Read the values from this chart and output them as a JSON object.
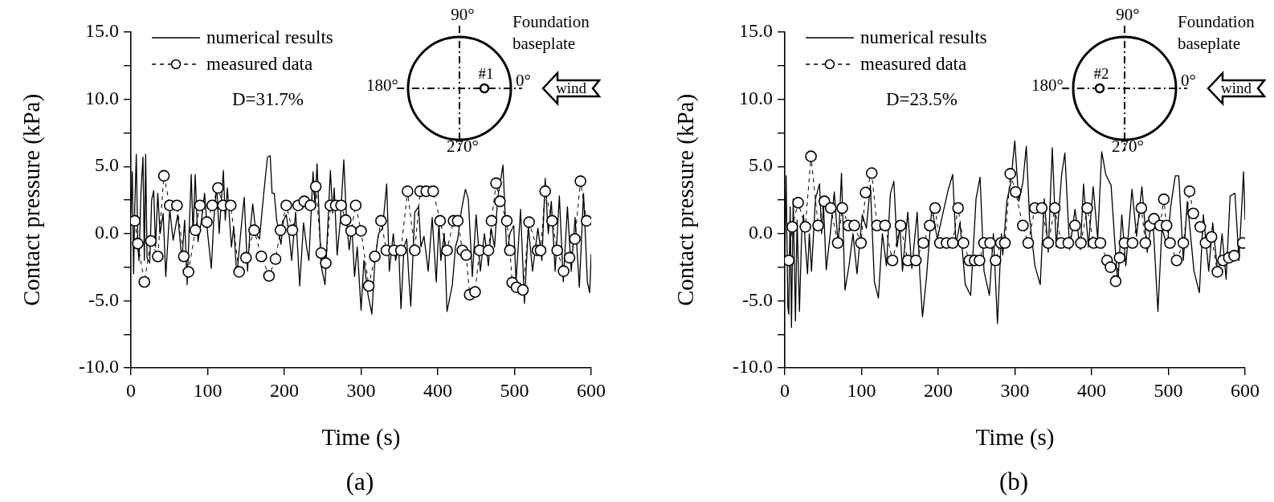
{
  "chart_data": [
    {
      "type": "line",
      "xlabel": "Time (s)",
      "ylabel": "Contact pressure (kPa)",
      "xlim": [
        0,
        600
      ],
      "xticks": [
        0,
        100,
        200,
        300,
        400,
        500,
        600
      ],
      "ylim": [
        -10,
        15
      ],
      "yticks": [
        {
          "value": -10,
          "label": "-10.0"
        },
        {
          "value": -7.5,
          "label": null
        },
        {
          "value": -5,
          "label": "-5.0"
        },
        {
          "value": -2.5,
          "label": null
        },
        {
          "value": 0,
          "label": "0.0"
        },
        {
          "value": 2.5,
          "label": null
        },
        {
          "value": 5,
          "label": "5.0"
        },
        {
          "value": 7.5,
          "label": null
        },
        {
          "value": 10,
          "label": "10.0"
        },
        {
          "value": 12.5,
          "label": null
        },
        {
          "value": 15,
          "label": "15.0"
        }
      ],
      "legend": "top left",
      "grid": false,
      "annotations": [
        "D=31.7%",
        "(a)",
        "90°",
        "180°",
        "0°",
        "270°",
        "#1",
        "Foundation baseplate",
        "wind"
      ],
      "series": [
        {
          "name": "numerical results",
          "color": "#000000",
          "marker": "none",
          "line_style": "solid",
          "x": [
            0,
            1.8,
            3.5,
            5,
            7,
            9,
            10.5,
            13,
            15.7,
            17.5,
            19.2,
            21,
            24.5,
            27,
            29.7,
            32,
            35,
            38,
            42,
            45.4,
            50.6,
            55,
            61,
            66.4,
            70,
            73.3,
            78.6,
            81,
            83.8,
            87.3,
            92,
            96,
            100,
            104.8,
            108,
            111.7,
            115,
            120.5,
            123,
            125.7,
            131,
            134,
            138,
            143,
            147.7,
            152,
            155,
            158.8,
            163,
            167.6,
            172.8,
            178,
            181.5,
            184,
            186.8,
            190,
            195.5,
            199,
            202.5,
            206,
            209.5,
            214.7,
            220,
            225,
            229,
            232,
            237.4,
            240,
            242.6,
            247.9,
            253,
            257,
            260,
            263,
            265,
            268.8,
            273,
            277.5,
            281,
            284.5,
            288,
            291.5,
            295,
            300,
            303.7,
            308.9,
            314.1,
            318,
            322.8,
            328,
            333.4,
            336.8,
            342,
            345,
            349,
            352,
            356,
            359.5,
            362,
            364.8,
            370,
            375,
            378,
            382,
            387.5,
            392.7,
            398,
            401.5,
            404,
            408.5,
            412,
            419,
            423,
            426,
            431,
            436,
            439.8,
            445,
            450,
            455.5,
            460.8,
            466,
            469.5,
            474,
            478,
            482,
            485,
            490,
            494,
            499,
            502,
            507.9,
            513,
            518,
            523.5,
            530.5,
            535.7,
            540,
            544,
            548,
            553,
            558.5,
            563.6,
            569,
            574,
            579,
            584.5,
            590,
            595,
            598,
            600
          ],
          "values": [
            1.5,
            4.6,
            -3.0,
            2,
            5.9,
            -1,
            -2.0,
            3,
            5.7,
            -2,
            5.9,
            -1.8,
            -2.2,
            2.5,
            3.2,
            -1,
            3.0,
            0,
            1.5,
            -3.2,
            1.8,
            -0.5,
            1.4,
            -2.0,
            1,
            -3.8,
            4.4,
            0,
            4.4,
            -0.6,
            1,
            3.0,
            0,
            -2.6,
            1,
            3.6,
            0,
            4.7,
            1,
            3.4,
            -1.0,
            0.5,
            -3.2,
            0,
            2.7,
            -2.8,
            0,
            2.2,
            0,
            -0.4,
            2.8,
            5.7,
            5.8,
            3,
            3.0,
            1,
            -0.8,
            1,
            1.4,
            0,
            -2.0,
            1.6,
            -3.9,
            0.8,
            -1,
            -2.0,
            4.6,
            2,
            5.2,
            -2.4,
            -3.8,
            1,
            4.7,
            1.5,
            3.4,
            -1.6,
            1,
            5.5,
            1,
            -1.2,
            0.5,
            -3.2,
            -1,
            -5.7,
            -2,
            -4.5,
            -6.0,
            -2,
            0,
            0.4,
            3.7,
            -2.8,
            0,
            -2,
            -1.0,
            -5.6,
            -1,
            -0.4,
            -3,
            -5.4,
            1.6,
            2.0,
            -1,
            -0.2,
            -2.8,
            1.2,
            -3.6,
            0.8,
            -2,
            0,
            -5.8,
            -3.8,
            -1,
            -0.4,
            1.8,
            3.3,
            2.6,
            -3.2,
            1.4,
            -2.8,
            0,
            -2.4,
            0.4,
            -1,
            2.6,
            4.0,
            5.1,
            -1.6,
            0,
            0.6,
            -3.6,
            1.8,
            -5.2,
            0.6,
            -2.8,
            0.4,
            -2.0,
            4.1,
            0,
            2.4,
            -2.8,
            2.8,
            -3.6,
            2.0,
            -2.8,
            1.2,
            -4.0,
            3.0,
            -3.6,
            -4.4,
            -1.5
          ]
        },
        {
          "name": "measured data",
          "color": "#000000",
          "marker": "circle",
          "line_style": "dashed",
          "x": [
            5,
            9,
            17.5,
            26,
            35,
            43,
            50.6,
            60,
            69,
            75,
            84,
            90,
            99,
            106,
            113.5,
            120,
            130,
            141,
            150,
            160.6,
            170,
            180,
            188.5,
            195,
            202.5,
            210.5,
            218,
            226,
            234,
            241,
            248,
            254,
            260,
            267,
            274,
            280,
            287,
            293,
            300,
            310,
            318,
            326,
            333,
            343,
            352,
            360.6,
            370,
            377,
            385,
            394,
            403,
            412,
            420.6,
            426,
            432,
            437,
            441.6,
            448.6,
            454.5,
            466,
            470,
            476,
            481,
            490,
            494,
            497,
            502.6,
            511,
            519,
            530,
            534,
            540,
            549,
            555.7,
            564,
            571.7,
            578.7,
            586,
            594
          ],
          "values": [
            0.95,
            -0.75,
            -3.6,
            -0.55,
            -1.7,
            4.3,
            2.1,
            2.1,
            -1.7,
            -2.85,
            0.25,
            2.1,
            0.85,
            2.1,
            3.4,
            2.1,
            2.1,
            -2.85,
            -1.8,
            0.25,
            -1.7,
            -3.15,
            -1.9,
            0.25,
            2.1,
            0.25,
            2.1,
            2.4,
            2.1,
            3.5,
            -1.45,
            -2.2,
            2.1,
            2.1,
            2.1,
            1.0,
            0.2,
            2.1,
            0.2,
            -3.9,
            -1.7,
            0.95,
            -1.25,
            -1.25,
            -1.25,
            3.15,
            -1.25,
            3.15,
            3.15,
            3.15,
            0.95,
            -1.25,
            0.95,
            0.95,
            -1.25,
            -1.6,
            -4.55,
            -4.35,
            -1.25,
            -1.25,
            0.95,
            3.75,
            2.4,
            0.95,
            -1.25,
            -3.65,
            -4.0,
            -4.2,
            0.85,
            -1.25,
            -1.25,
            3.15,
            0.95,
            -1.25,
            -2.8,
            -1.8,
            -0.4,
            3.9,
            0.95
          ]
        }
      ]
    },
    {
      "type": "line",
      "xlabel": "Time (s)",
      "ylabel": "Contact pressure (kPa)",
      "xlim": [
        0,
        600
      ],
      "xticks": [
        0,
        100,
        200,
        300,
        400,
        500,
        600
      ],
      "ylim": [
        -10,
        15
      ],
      "yticks": [
        {
          "value": -10,
          "label": "-10.0"
        },
        {
          "value": -7.5,
          "label": null
        },
        {
          "value": -5,
          "label": "-5.0"
        },
        {
          "value": -2.5,
          "label": null
        },
        {
          "value": 0,
          "label": "0.0"
        },
        {
          "value": 2.5,
          "label": null
        },
        {
          "value": 5,
          "label": "5.0"
        },
        {
          "value": 7.5,
          "label": null
        },
        {
          "value": 10,
          "label": "10.0"
        },
        {
          "value": 12.5,
          "label": null
        },
        {
          "value": 15,
          "label": "15.0"
        }
      ],
      "legend": "top left",
      "grid": false,
      "annotations": [
        "D=23.5%",
        "(b)",
        "90°",
        "180°",
        "0°",
        "270°",
        "#2",
        "Foundation baseplate",
        "wind"
      ],
      "series": [
        {
          "name": "numerical results",
          "color": "#000000",
          "marker": "none",
          "line_style": "solid",
          "x": [
            0,
            1.7,
            4,
            5.2,
            7,
            8.7,
            11,
            13.9,
            16,
            19.1,
            22,
            24.4,
            27,
            29.6,
            32,
            34.8,
            40,
            45.3,
            48,
            50.5,
            54,
            59.3,
            64.5,
            69.7,
            73.9,
            78.4,
            83.7,
            88.9,
            94.1,
            101,
            106.3,
            111.5,
            116.8,
            122,
            127.2,
            132.5,
            137.7,
            142.2,
            146.4,
            150,
            153.4,
            160.3,
            165.6,
            172.6,
            176,
            179.5,
            184.8,
            191.7,
            198.7,
            205.7,
            212.7,
            218.9,
            223.1,
            228.3,
            235.3,
            242.3,
            249.3,
            254.5,
            259.7,
            266.7,
            271.9,
            277.2,
            282.4,
            284.2,
            289.4,
            294.6,
            299.8,
            305,
            310.3,
            314.8,
            319,
            326,
            333,
            338.2,
            343.4,
            348.7,
            353.9,
            360.9,
            365.1,
            371.3,
            378.3,
            385.3,
            389.4,
            395.7,
            402,
            407.9,
            413.1,
            418.4,
            425.3,
            431.3,
            434.1,
            439.3,
            444.5,
            452.6,
            458.5,
            465.5,
            472.4,
            479.4,
            486.4,
            491.6,
            498.6,
            503,
            509,
            513.6,
            519.5,
            524.7,
            533.4,
            540.4,
            545.6,
            552.6,
            557.8,
            564.8,
            570,
            575.3,
            580.5,
            586.8,
            592,
            598,
            600
          ],
          "values": [
            -2,
            4.3,
            -5.5,
            -6,
            2,
            -7.0,
            2.6,
            -6.5,
            1,
            -5.8,
            0,
            1.4,
            -1,
            -3.0,
            0,
            -2.8,
            2.6,
            3.7,
            0,
            2.0,
            -2.7,
            0,
            3.1,
            -1.0,
            4.5,
            -4.2,
            -2.4,
            0,
            -3.0,
            1.4,
            0.4,
            3.6,
            -3.6,
            -4.8,
            0,
            -2.4,
            3.0,
            3.9,
            -1.0,
            0.5,
            -2.8,
            1.6,
            -2.6,
            1.6,
            -3,
            -6.2,
            -3.2,
            2.0,
            -0.4,
            1.4,
            3.2,
            4.4,
            -0.8,
            0.8,
            -3.8,
            -4.6,
            2.6,
            4.2,
            -2.8,
            -4.6,
            0,
            -6.7,
            0,
            -1.6,
            2.4,
            3.8,
            6.9,
            2.4,
            3.8,
            6.5,
            1.2,
            -2.4,
            -3.8,
            2.6,
            -1.4,
            6.4,
            -1.0,
            4.4,
            6.0,
            -1.2,
            1.8,
            -1.2,
            3.7,
            -1.0,
            3.5,
            -0.4,
            6.1,
            4.4,
            3.6,
            -1.6,
            -3.8,
            1.4,
            -2.4,
            3.3,
            -0.2,
            3.5,
            -1.4,
            1.5,
            -5.8,
            0.4,
            -1.0,
            2,
            4.3,
            4.3,
            -2.0,
            2.4,
            -2.8,
            -4.4,
            1.4,
            -2.8,
            0.8,
            -3.2,
            0,
            -3.4,
            2.8,
            3.0,
            -2,
            4.6,
            1
          ]
        },
        {
          "name": "measured data",
          "color": "#000000",
          "marker": "circle",
          "line_style": "dashed",
          "x": [
            5.2,
            9.7,
            17.4,
            26.8,
            34.1,
            43.5,
            51.6,
            59.9,
            69,
            74.9,
            82.9,
            90.6,
            99.3,
            105.3,
            113.3,
            120.2,
            130.7,
            140.4,
            150.9,
            160.3,
            170.8,
            180.6,
            188.9,
            195.9,
            202.2,
            210.9,
            218.9,
            225.9,
            232.9,
            240.5,
            247.5,
            253.8,
            259.7,
            267.7,
            274.7,
            281.7,
            286.9,
            293.9,
            300.9,
            310.3,
            317.3,
            326,
            334.9,
            343.4,
            352,
            360.1,
            369.6,
            378.3,
            386,
            394.3,
            402.6,
            411.4,
            420.1,
            424.6,
            431.3,
            436.5,
            442.8,
            453.3,
            464.8,
            470,
            476,
            481.2,
            489.2,
            494.1,
            497.6,
            502.1,
            510.8,
            519.5,
            527.6,
            532.5,
            541.6,
            548.5,
            556.2,
            563.9,
            571.2,
            578.9,
            585.8,
            597
          ],
          "values": [
            -2.0,
            0.5,
            2.3,
            0.5,
            5.75,
            0.6,
            2.4,
            1.9,
            -0.7,
            1.9,
            0.6,
            0.6,
            -0.7,
            3.05,
            4.5,
            0.6,
            0.6,
            -2.0,
            0.6,
            -2.0,
            -2.0,
            -0.7,
            0.6,
            1.9,
            -0.7,
            -0.7,
            -0.7,
            1.9,
            -0.7,
            -2.0,
            -2.0,
            -2.0,
            -0.7,
            -0.7,
            -2.0,
            -0.7,
            -0.7,
            4.45,
            3.1,
            0.6,
            -0.7,
            1.9,
            1.9,
            -0.7,
            1.9,
            -0.7,
            -0.7,
            0.6,
            -0.7,
            1.9,
            -0.7,
            -0.7,
            -2.0,
            -2.5,
            -3.55,
            -1.8,
            -0.7,
            -0.7,
            1.9,
            -0.7,
            0.6,
            1.1,
            0.6,
            2.55,
            0.6,
            -0.7,
            -2.0,
            -0.7,
            3.15,
            1.5,
            0.5,
            -0.7,
            -0.25,
            -2.85,
            -2.0,
            -1.8,
            -1.65,
            -0.7
          ]
        }
      ]
    }
  ]
}
